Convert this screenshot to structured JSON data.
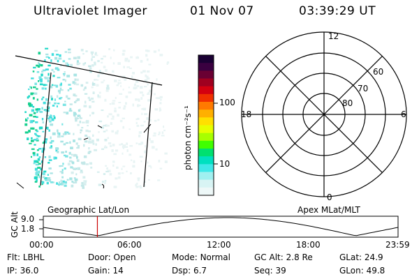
{
  "header": {
    "title": "Ultraviolet Imager",
    "date": "01 Nov 07",
    "time": "03:39:29 UT"
  },
  "colorbar": {
    "unit_label": "photon cm⁻²s⁻¹",
    "ticks": [
      "100",
      "10"
    ],
    "scale": "log",
    "colors": [
      "#1a0033",
      "#3a0040",
      "#6a0033",
      "#a00020",
      "#d40010",
      "#f03000",
      "#ff7a00",
      "#ffb000",
      "#ffe000",
      "#e6ff00",
      "#a8ff00",
      "#40ff00",
      "#00e070",
      "#00e0c0",
      "#40e8e8",
      "#a0f0f0",
      "#d8f4f4",
      "#eef8f8"
    ]
  },
  "polar_plot": {
    "mlt_labels": [
      "12",
      "18",
      "6",
      "0"
    ],
    "lat_labels": [
      "60",
      "70",
      "80"
    ]
  },
  "alt_plot": {
    "geo_label": "Geographic Lat/Lon",
    "apex_label": "Apex MLat/MLT",
    "y_label": "GC Alt",
    "y_ticks": [
      "9.0",
      "1.8"
    ],
    "x_ticks": [
      "00:00",
      "06:00",
      "12:00",
      "18:00",
      "23:59"
    ],
    "current_time_fraction": 0.1525,
    "marker_color": "#cc0000"
  },
  "status": {
    "flt_label": "Flt:",
    "flt_value": "LBHL",
    "door_label": "Door:",
    "door_value": "Open",
    "mode_label": "Mode:",
    "mode_value": "Normal",
    "gcalt_label": "GC Alt:",
    "gcalt_value": "2.8 Re",
    "glat_label": "GLat:",
    "glat_value": "24.9",
    "ip_label": "IP:",
    "ip_value": "36.0",
    "gain_label": "Gain:",
    "gain_value": "14",
    "dsp_label": "Dsp:",
    "dsp_value": "6.7",
    "seq_label": "Seq:",
    "seq_value": "39",
    "glon_label": "GLon:",
    "glon_value": "49.8"
  }
}
